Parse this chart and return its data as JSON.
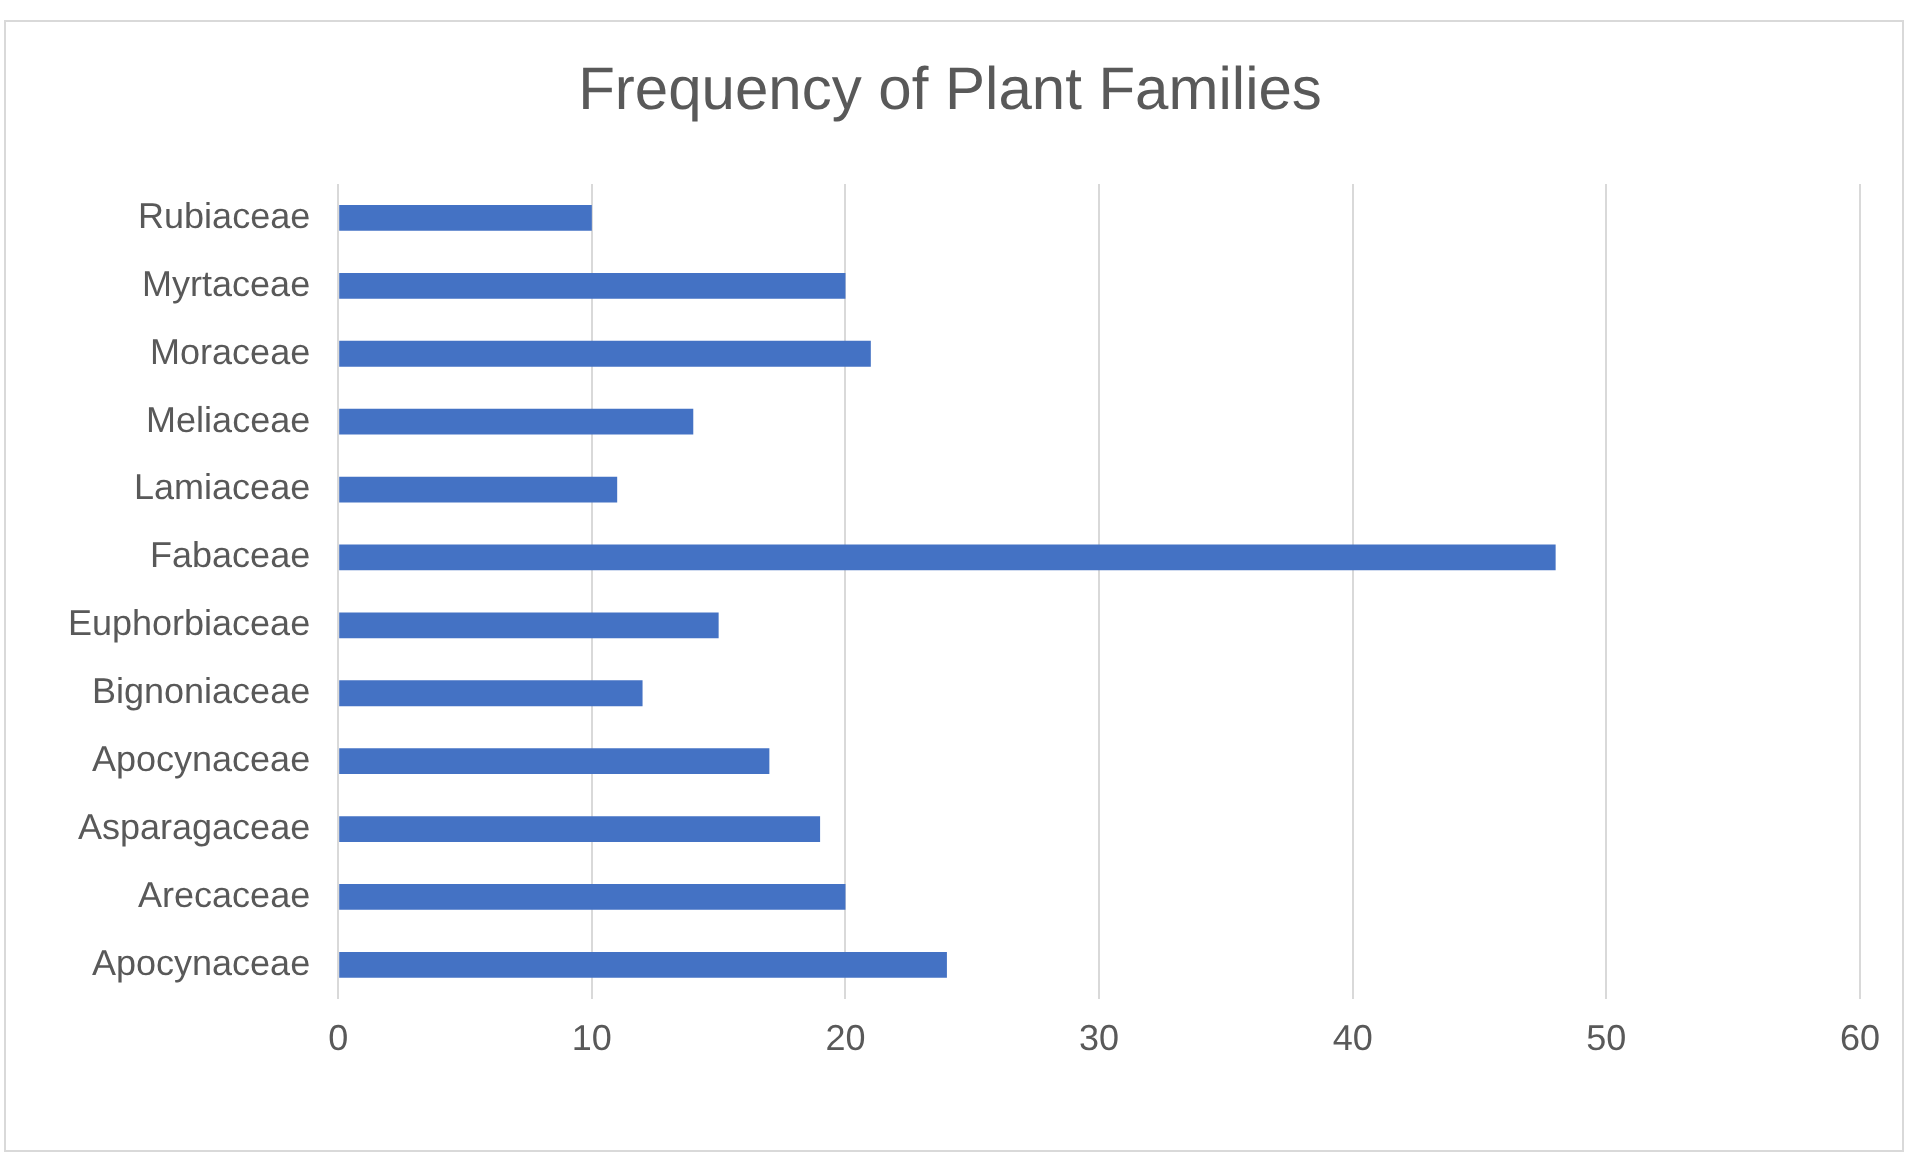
{
  "chart_data": {
    "type": "bar",
    "orientation": "horizontal",
    "title": "Frequency of Plant Families",
    "categories": [
      "Rubiaceae",
      "Myrtaceae",
      "Moraceae",
      "Meliaceae",
      "Lamiaceae",
      "Fabaceae",
      "Euphorbiaceae",
      "Bignoniaceae",
      "Apocynaceae",
      "Asparagaceae",
      "Arecaceae",
      "Apocynaceae"
    ],
    "values": [
      10,
      20,
      21,
      14,
      11,
      48,
      15,
      12,
      17,
      19,
      20,
      24
    ],
    "color": "#4472c4",
    "xlim": [
      0,
      60
    ],
    "xticks": [
      0,
      10,
      20,
      30,
      40,
      50,
      60
    ],
    "grid": "x",
    "legend": false
  }
}
